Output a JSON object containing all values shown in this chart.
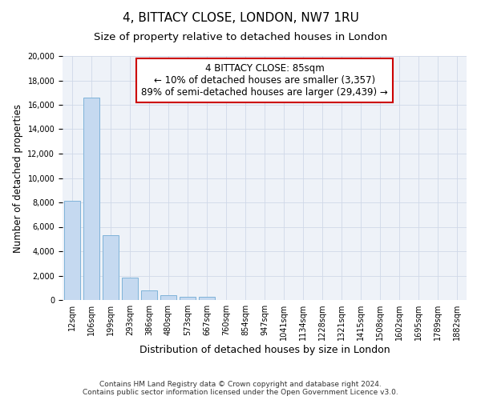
{
  "title": "4, BITTACY CLOSE, LONDON, NW7 1RU",
  "subtitle": "Size of property relative to detached houses in London",
  "xlabel": "Distribution of detached houses by size in London",
  "ylabel": "Number of detached properties",
  "categories": [
    "12sqm",
    "106sqm",
    "199sqm",
    "293sqm",
    "386sqm",
    "480sqm",
    "573sqm",
    "667sqm",
    "760sqm",
    "854sqm",
    "947sqm",
    "1041sqm",
    "1134sqm",
    "1228sqm",
    "1321sqm",
    "1415sqm",
    "1508sqm",
    "1602sqm",
    "1695sqm",
    "1789sqm",
    "1882sqm"
  ],
  "values": [
    8100,
    16600,
    5300,
    1850,
    800,
    380,
    270,
    230,
    0,
    0,
    0,
    0,
    0,
    0,
    0,
    0,
    0,
    0,
    0,
    0,
    0
  ],
  "bar_color": "#c5d9f0",
  "bar_edge_color": "#7fb3d9",
  "annotation_text": "4 BITTACY CLOSE: 85sqm\n← 10% of detached houses are smaller (3,357)\n89% of semi-detached houses are larger (29,439) →",
  "annotation_box_color": "#ffffff",
  "annotation_box_edge": "#cc0000",
  "ylim": [
    0,
    20000
  ],
  "yticks": [
    0,
    2000,
    4000,
    6000,
    8000,
    10000,
    12000,
    14000,
    16000,
    18000,
    20000
  ],
  "grid_color": "#d0d8e8",
  "background_color": "#eef2f8",
  "footer_line1": "Contains HM Land Registry data © Crown copyright and database right 2024.",
  "footer_line2": "Contains public sector information licensed under the Open Government Licence v3.0.",
  "title_fontsize": 11,
  "subtitle_fontsize": 9.5,
  "xlabel_fontsize": 9,
  "ylabel_fontsize": 8.5,
  "tick_fontsize": 7,
  "annotation_fontsize": 8.5,
  "footer_fontsize": 6.5
}
